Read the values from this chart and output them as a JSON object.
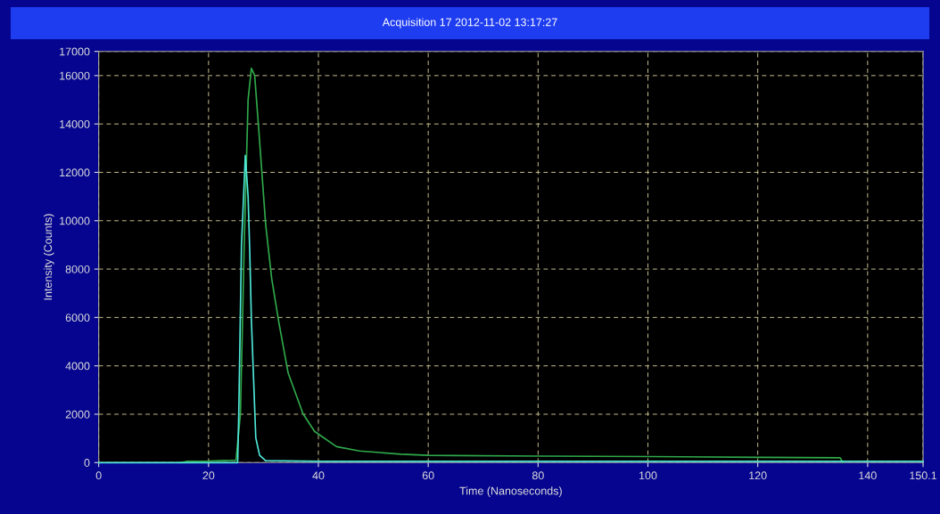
{
  "chart_data": {
    "type": "line",
    "title": "Acquisition 17 2012-11-02 13:17:27",
    "xlabel": "Time (Nanoseconds)",
    "ylabel": "Intensity (Counts)",
    "xlim": [
      0,
      150.1
    ],
    "ylim": [
      0,
      17000
    ],
    "xticks": [
      0,
      20,
      40,
      60,
      80,
      100,
      120,
      140,
      150.1
    ],
    "yticks": [
      0,
      2000,
      4000,
      6000,
      8000,
      10000,
      12000,
      14000,
      16000,
      17000
    ],
    "grid": true,
    "line_style": "solid",
    "marker": "none",
    "series": [
      {
        "color": "#2fa84a",
        "x": [
          15,
          16,
          20,
          25,
          25.8,
          26.5,
          27.2,
          27.8,
          28.4,
          29.1,
          30.4,
          31.5,
          32.8,
          34.5,
          37.2,
          39.3,
          43.3,
          47.5,
          55,
          60,
          80,
          100,
          120,
          135,
          135.5
        ],
        "values": [
          0,
          50,
          60,
          100,
          2000,
          9000,
          15000,
          16300,
          16000,
          13900,
          9850,
          7600,
          5800,
          3700,
          2020,
          1290,
          660,
          480,
          350,
          300,
          270,
          250,
          220,
          200,
          0
        ]
      },
      {
        "color": "#4ee6d8",
        "x": [
          0,
          25.3,
          25.5,
          26,
          26.7,
          27.2,
          27.5,
          27.8,
          28.6,
          29.3,
          30.4,
          40,
          80,
          120,
          150.1
        ],
        "values": [
          0,
          0,
          2000,
          9000,
          12700,
          11000,
          8750,
          5900,
          1030,
          300,
          80,
          50,
          50,
          50,
          50
        ]
      }
    ]
  }
}
